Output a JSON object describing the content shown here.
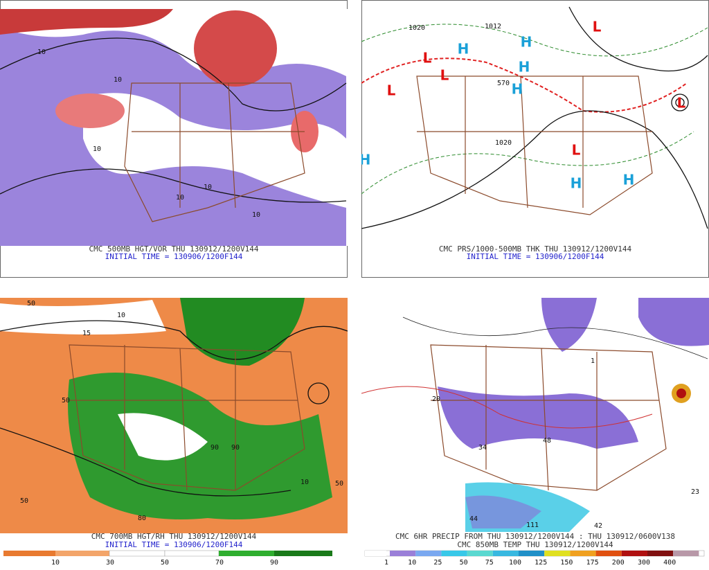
{
  "panels": [
    {
      "caption": "CMC 500MB HGT/VOR THU 130912/1200V144",
      "initial_time": "INITIAL TIME = 130906/1200F144",
      "labels": [
        "10",
        "10",
        "10",
        "10",
        "10",
        "10"
      ]
    },
    {
      "caption": "CMC PRS/1000-500MB THK THU 130912/1200V144",
      "initial_time": "INITIAL TIME = 130906/1200F144",
      "labels": [
        "1020",
        "1012",
        "1020",
        "570",
        "H",
        "H",
        "H",
        "H",
        "H",
        "H",
        "H",
        "L",
        "L",
        "L",
        "L",
        "L",
        "L"
      ]
    },
    {
      "caption": "CMC 700MB HGT/RH THU 130912/1200V144",
      "initial_time": "INITIAL TIME = 130906/1200F144",
      "labels": [
        "50",
        "10",
        "15",
        "50",
        "90",
        "90",
        "50",
        "10",
        "50",
        "80"
      ],
      "legend": [
        "10",
        "30",
        "50",
        "70",
        "90"
      ]
    },
    {
      "caption": "CMC 6HR PRECIP FROM THU 130912/1200V144 : THU 130912/0600V138",
      "initial_time": "CMC 850MB TEMP THU 130912/1200V144",
      "labels": [
        "20",
        "34",
        "48",
        "111",
        "44",
        "42",
        "23",
        "1"
      ],
      "legend": [
        "1",
        "10",
        "25",
        "50",
        "75",
        "100",
        "125",
        "150",
        "175",
        "200",
        "300",
        "400"
      ]
    }
  ]
}
